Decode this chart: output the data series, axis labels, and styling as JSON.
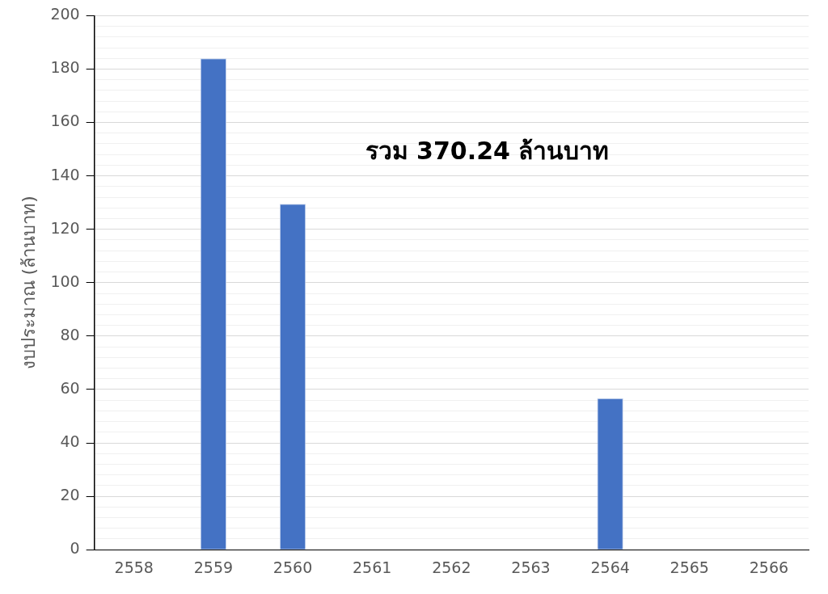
{
  "chart_data": {
    "type": "bar",
    "ylabel": "งบประมาณ (ล้านบาท)",
    "categories": [
      "2558",
      "2559",
      "2560",
      "2561",
      "2562",
      "2563",
      "2564",
      "2565",
      "2566"
    ],
    "values": [
      0,
      184.0,
      129.5,
      0,
      0,
      0,
      56.7,
      0,
      0
    ],
    "color": "#4472c4",
    "ylim": [
      0,
      200
    ],
    "yticks": [
      0,
      {
        "value": 4,
        "label": null
      },
      {
        "value": 8,
        "label": null
      },
      {
        "value": 12,
        "label": null
      },
      {
        "value": 16,
        "label": null
      },
      20,
      {
        "value": 24,
        "label": null
      },
      {
        "value": 28,
        "label": null
      },
      {
        "value": 32,
        "label": null
      },
      {
        "value": 36,
        "label": null
      },
      40,
      {
        "value": 44,
        "label": null
      },
      {
        "value": 48,
        "label": null
      },
      {
        "value": 52,
        "label": null
      },
      {
        "value": 56,
        "label": null
      },
      60,
      {
        "value": 64,
        "label": null
      },
      {
        "value": 68,
        "label": null
      },
      {
        "value": 72,
        "label": null
      },
      {
        "value": 76,
        "label": null
      },
      80,
      {
        "value": 84,
        "label": null
      },
      {
        "value": 88,
        "label": null
      },
      {
        "value": 92,
        "label": null
      },
      {
        "value": 96,
        "label": null
      },
      100,
      {
        "value": 104,
        "label": null
      },
      {
        "value": 108,
        "label": null
      },
      {
        "value": 112,
        "label": null
      },
      {
        "value": 116,
        "label": null
      },
      120,
      {
        "value": 124,
        "label": null
      },
      {
        "value": 128,
        "label": null
      },
      {
        "value": 132,
        "label": null
      },
      {
        "value": 136,
        "label": null
      },
      140,
      {
        "value": 144,
        "label": null
      },
      {
        "value": 148,
        "label": null
      },
      {
        "value": 152,
        "label": null
      },
      {
        "value": 156,
        "label": null
      },
      160,
      {
        "value": 164,
        "label": null
      },
      {
        "value": 168,
        "label": null
      },
      {
        "value": 172,
        "label": null
      },
      {
        "value": 176,
        "label": null
      },
      180,
      {
        "value": 184,
        "label": null
      },
      {
        "value": 188,
        "label": null
      },
      {
        "value": 192,
        "label": null
      },
      {
        "value": 196,
        "label": null
      },
      200
    ],
    "grid": "y",
    "annotations": [
      "รวม 370.24 ล้านบาท"
    ]
  }
}
